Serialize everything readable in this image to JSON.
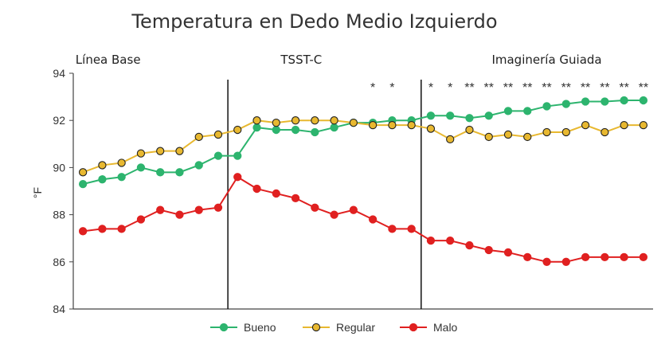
{
  "chart_data": {
    "type": "line",
    "title": "Temperatura en Dedo Medio Izquierdo",
    "ylabel": "°F",
    "xlabel": "",
    "ylim": [
      84,
      94
    ],
    "yticks": [
      84,
      86,
      88,
      90,
      92,
      94
    ],
    "x": [
      1,
      2,
      3,
      4,
      5,
      6,
      7,
      8,
      9,
      10,
      11,
      12,
      13,
      14,
      15,
      16,
      17,
      18,
      19,
      20,
      21,
      22,
      23,
      24,
      25,
      26,
      27,
      28,
      29,
      30
    ],
    "phases": [
      {
        "label": "Línea Base",
        "start": 1,
        "end": 8
      },
      {
        "label": "TSST-C",
        "start": 9,
        "end": 18
      },
      {
        "label": "Imaginería Guiada",
        "start": 19,
        "end": 30
      }
    ],
    "phase_dividers": [
      8.5,
      18.5
    ],
    "significance": [
      {
        "x": 16,
        "label": "*"
      },
      {
        "x": 17,
        "label": "*"
      },
      {
        "x": 19,
        "label": "*"
      },
      {
        "x": 20,
        "label": "*"
      },
      {
        "x": 21,
        "label": "**"
      },
      {
        "x": 22,
        "label": "**"
      },
      {
        "x": 23,
        "label": "**"
      },
      {
        "x": 24,
        "label": "**"
      },
      {
        "x": 25,
        "label": "**"
      },
      {
        "x": 26,
        "label": "**"
      },
      {
        "x": 27,
        "label": "**"
      },
      {
        "x": 28,
        "label": "**"
      },
      {
        "x": 29,
        "label": "**"
      },
      {
        "x": 30,
        "label": "**"
      }
    ],
    "series": [
      {
        "name": "Bueno",
        "color": "#2db46e",
        "marker_edge": "#2db46e",
        "values": [
          89.3,
          89.5,
          89.6,
          90.0,
          89.8,
          89.8,
          90.1,
          90.5,
          90.5,
          91.7,
          91.6,
          91.6,
          91.5,
          91.7,
          91.9,
          91.9,
          92.0,
          92.0,
          92.2,
          92.2,
          92.1,
          92.2,
          92.4,
          92.4,
          92.6,
          92.7,
          92.8,
          92.8,
          92.85,
          92.85
        ]
      },
      {
        "name": "Regular",
        "color": "#e8b830",
        "marker_edge": "#222222",
        "values": [
          89.8,
          90.1,
          90.2,
          90.6,
          90.7,
          90.7,
          91.3,
          91.4,
          91.6,
          92.0,
          91.9,
          92.0,
          92.0,
          92.0,
          91.9,
          91.8,
          91.8,
          91.8,
          91.65,
          91.2,
          91.6,
          91.3,
          91.4,
          91.3,
          91.5,
          91.5,
          91.8,
          91.5,
          91.8,
          91.8
        ]
      },
      {
        "name": "Malo",
        "color": "#e02020",
        "marker_edge": "#e02020",
        "values": [
          87.3,
          87.4,
          87.4,
          87.8,
          88.2,
          88.0,
          88.2,
          88.3,
          89.6,
          89.1,
          88.9,
          88.7,
          88.3,
          88.0,
          88.2,
          87.8,
          87.4,
          87.4,
          86.9,
          86.9,
          86.7,
          86.5,
          86.4,
          86.2,
          86.0,
          86.0,
          86.2,
          86.2,
          86.2,
          86.2
        ]
      }
    ],
    "legend_position": "bottom"
  }
}
